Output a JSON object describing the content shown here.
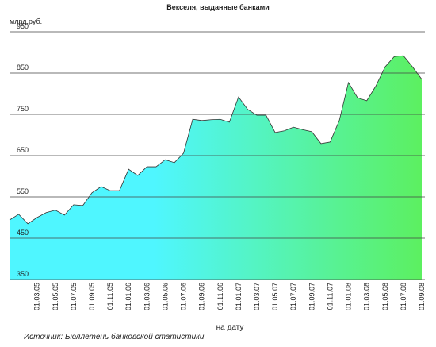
{
  "chart_data": {
    "type": "area",
    "title": "Векселя, выданные банками",
    "y_label": "млрд.руб.",
    "x_label": "на дату",
    "source": "Источник: Бюллетень банковской статистики",
    "categories": [
      null,
      null,
      null,
      "01.03.05",
      null,
      "01.05.05",
      null,
      "01.07.05",
      null,
      "01.09.05",
      null,
      "01.11.05",
      null,
      "01.01.06",
      null,
      "01.03.06",
      null,
      "01.05.06",
      null,
      "01.07.06",
      null,
      "01.09.06",
      null,
      "01.11.06",
      null,
      "01.01.07",
      null,
      "01.03.07",
      null,
      "01.05.07",
      null,
      "01.07.07",
      null,
      "01.09.07",
      null,
      "01.11.07",
      null,
      "01.01.08",
      null,
      "01.03.08",
      null,
      "01.05.08",
      null,
      "01.07.08",
      null,
      "01.09.08"
    ],
    "values": [
      494,
      508,
      485,
      500,
      512,
      518,
      506,
      531,
      529,
      560,
      575,
      565,
      565,
      617,
      602,
      623,
      623,
      640,
      633,
      656,
      738,
      735,
      737,
      738,
      731,
      792,
      762,
      748,
      748,
      706,
      710,
      719,
      713,
      708,
      679,
      683,
      735,
      827,
      790,
      783,
      819,
      865,
      890,
      892,
      865,
      835
    ],
    "gradient_colors": [
      "#4ff6ff",
      "#4ff6ff",
      "#5cf060"
    ],
    "ylim": [
      350,
      950
    ],
    "yticks": [
      350,
      450,
      550,
      650,
      750,
      850,
      950
    ],
    "grid": true
  }
}
